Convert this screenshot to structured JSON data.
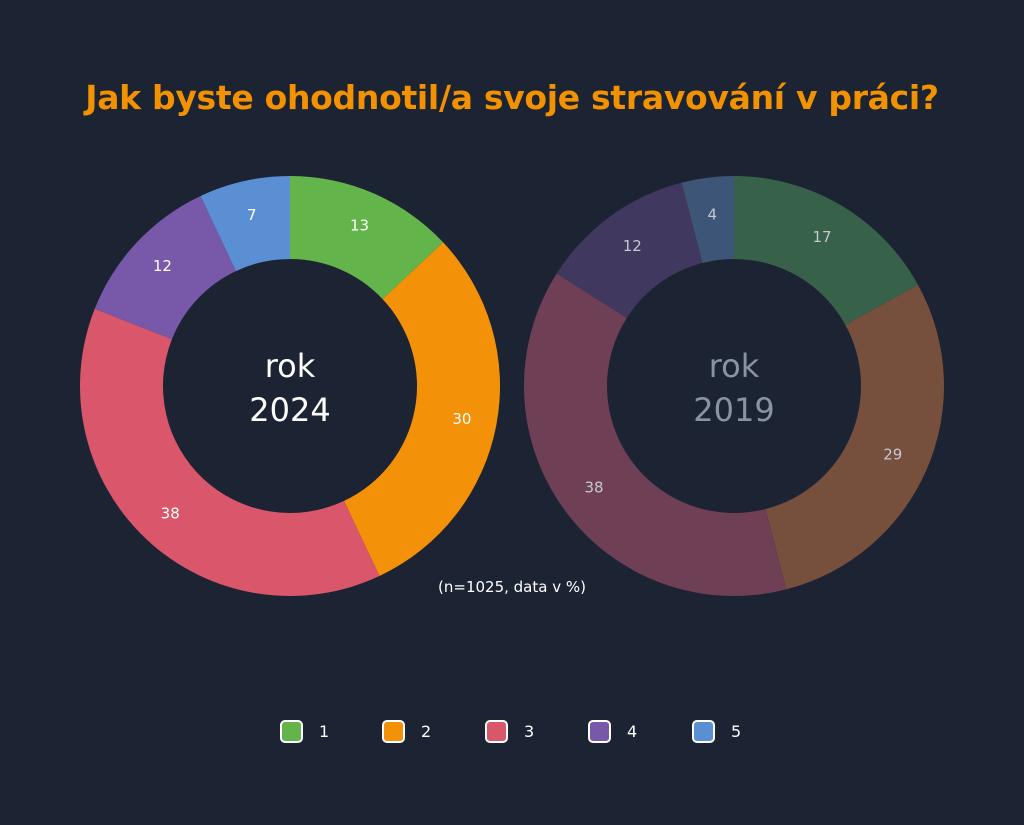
{
  "title": "Jak byste ohodnotil/a svoje stravování v práci?",
  "note": "(n=1025, data v %)",
  "colors": {
    "background": "#1c2333",
    "title": "#f39200",
    "center_2024": "#ffffff",
    "center_2019": "#8a93a3",
    "labels_2024": "#ffffff",
    "labels_2019": "#c4c8d0"
  },
  "chart_data": [
    {
      "type": "pie",
      "variant": "donut",
      "title": "rok 2024",
      "center_label": [
        "rok",
        "2024"
      ],
      "categories": [
        "1",
        "2",
        "3",
        "4",
        "5"
      ],
      "values": [
        13,
        30,
        38,
        12,
        7
      ],
      "colors": [
        "#63b44a",
        "#f39208",
        "#d9566b",
        "#7858a8",
        "#5b8fd3"
      ]
    },
    {
      "type": "pie",
      "variant": "donut",
      "title": "rok 2019",
      "center_label": [
        "rok",
        "2019"
      ],
      "categories": [
        "1",
        "2",
        "3",
        "4",
        "5"
      ],
      "values": [
        17,
        29,
        38,
        12,
        4
      ],
      "colors": [
        "#376149",
        "#774f3d",
        "#6f3f56",
        "#40385f",
        "#3d5677"
      ]
    }
  ],
  "legend": {
    "position": "bottom",
    "items": [
      {
        "label": "1",
        "color": "#63b44a"
      },
      {
        "label": "2",
        "color": "#f39208"
      },
      {
        "label": "3",
        "color": "#d9566b"
      },
      {
        "label": "4",
        "color": "#7858a8"
      },
      {
        "label": "5",
        "color": "#5b8fd3"
      }
    ]
  }
}
